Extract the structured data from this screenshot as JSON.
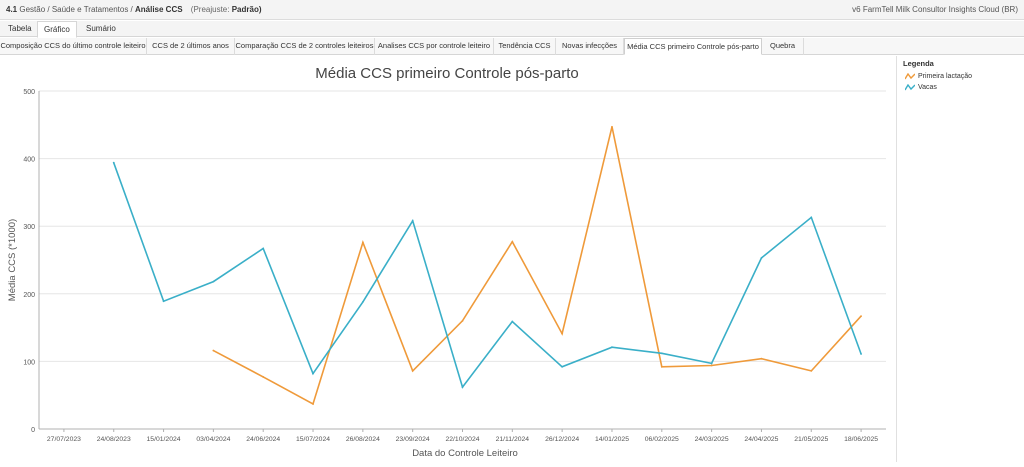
{
  "breadcrumb": {
    "number": "4.1",
    "path": "Gestão / Saúde e Tratamentos",
    "separator": " / ",
    "current": "Análise CCS",
    "preset_label": "(Preajuste:",
    "preset_value": "Padrão)"
  },
  "app_name": "v6 FarmTell Milk Consultor Insights Cloud (BR)",
  "view_tabs": [
    {
      "label": "Tabela",
      "active": false
    },
    {
      "label": "Gráfico",
      "active": true
    },
    {
      "label": "Sumário",
      "active": false
    }
  ],
  "report_tabs": [
    {
      "label": "Composição CCS do último controle leiteiro",
      "active": false
    },
    {
      "label": "CCS de 2 últimos anos",
      "active": false
    },
    {
      "label": "Comparação CCS de 2 controles leiteiros",
      "active": false
    },
    {
      "label": "Analises CCS por controle leiteiro",
      "active": false
    },
    {
      "label": "Tendência CCS",
      "active": false
    },
    {
      "label": "Novas infecções",
      "active": false
    },
    {
      "label": "Média CCS primeiro Controle pós-parto",
      "active": true
    },
    {
      "label": "Quebra",
      "active": false
    }
  ],
  "legend": {
    "title": "Legenda"
  },
  "colors": {
    "series_primeira": "#ef9a3a",
    "series_vacas": "#3aafc8",
    "grid": "#e6e6e6",
    "axis": "#b0b0b0"
  },
  "chart_data": {
    "type": "line",
    "title": "Média CCS primeiro Controle pós-parto",
    "xlabel": "Data do Controle Leiteiro",
    "ylabel": "Média CCS (*1000)",
    "ylim": [
      0,
      500
    ],
    "yticks": [
      0,
      100,
      200,
      300,
      400,
      500
    ],
    "grid": true,
    "legend_position": "right",
    "categories": [
      "27/07/2023",
      "24/08/2023",
      "15/01/2024",
      "03/04/2024",
      "24/06/2024",
      "15/07/2024",
      "26/08/2024",
      "23/09/2024",
      "22/10/2024",
      "21/11/2024",
      "26/12/2024",
      "14/01/2025",
      "06/02/2025",
      "24/03/2025",
      "24/04/2025",
      "21/05/2025",
      "18/06/2025"
    ],
    "series": [
      {
        "name": "Primeira lactação",
        "color_key": "series_primeira",
        "values": [
          null,
          null,
          null,
          116,
          77,
          37,
          276,
          86,
          160,
          277,
          141,
          447,
          92,
          94,
          104,
          86,
          167
        ]
      },
      {
        "name": "Vacas",
        "color_key": "series_vacas",
        "values": [
          null,
          394,
          189,
          218,
          267,
          82,
          188,
          308,
          62,
          159,
          92,
          121,
          112,
          97,
          253,
          313,
          111
        ]
      }
    ]
  }
}
